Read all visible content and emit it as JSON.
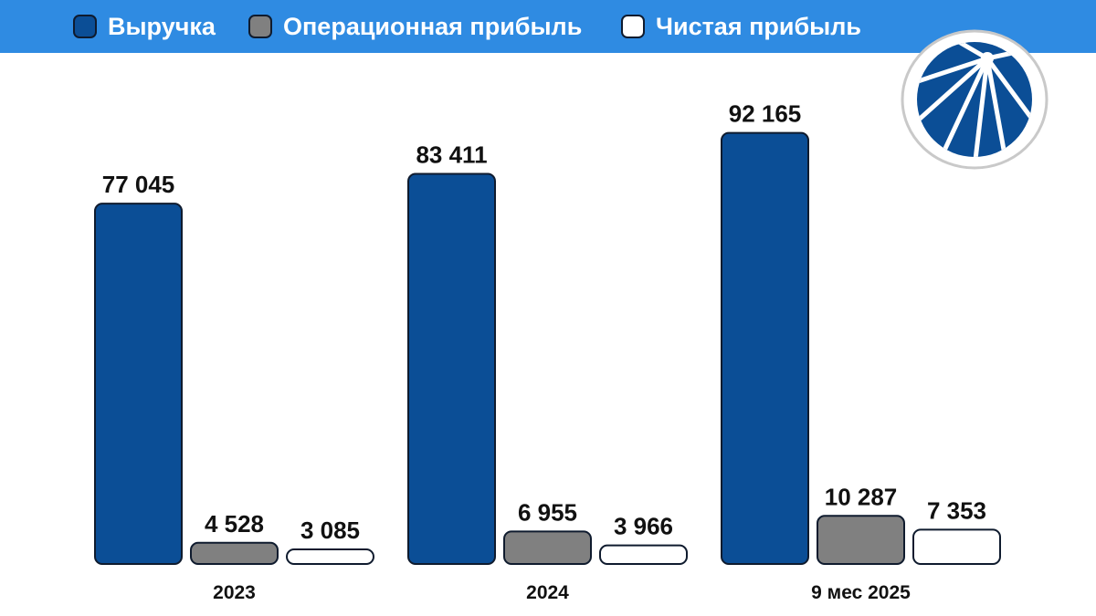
{
  "legend": [
    {
      "label": "Выручка",
      "color": "#0b4e96"
    },
    {
      "label": "Операционная прибыль",
      "color": "#808080"
    },
    {
      "label": "Чистая прибыль",
      "color": "#ffffff"
    }
  ],
  "logo": {
    "icon": "company-logo-icon"
  },
  "chart_data": {
    "type": "bar",
    "categories": [
      "2023",
      "2024",
      "9 мес 2025"
    ],
    "series": [
      {
        "name": "Выручка",
        "values": [
          77045,
          83411,
          92165
        ],
        "labels": [
          "77 045",
          "83 411",
          "92 165"
        ],
        "color": "#0b4e96"
      },
      {
        "name": "Операционная прибыль",
        "values": [
          4528,
          6955,
          10287
        ],
        "labels": [
          "4 528",
          "6 955",
          "10 287"
        ],
        "color": "#808080"
      },
      {
        "name": "Чистая прибыль",
        "values": [
          3085,
          3966,
          7353
        ],
        "labels": [
          "3 085",
          "3 966",
          "7 353"
        ],
        "color": "#ffffff"
      }
    ],
    "title": "",
    "xlabel": "",
    "ylabel": "",
    "grid": false,
    "legend_position": "top"
  }
}
